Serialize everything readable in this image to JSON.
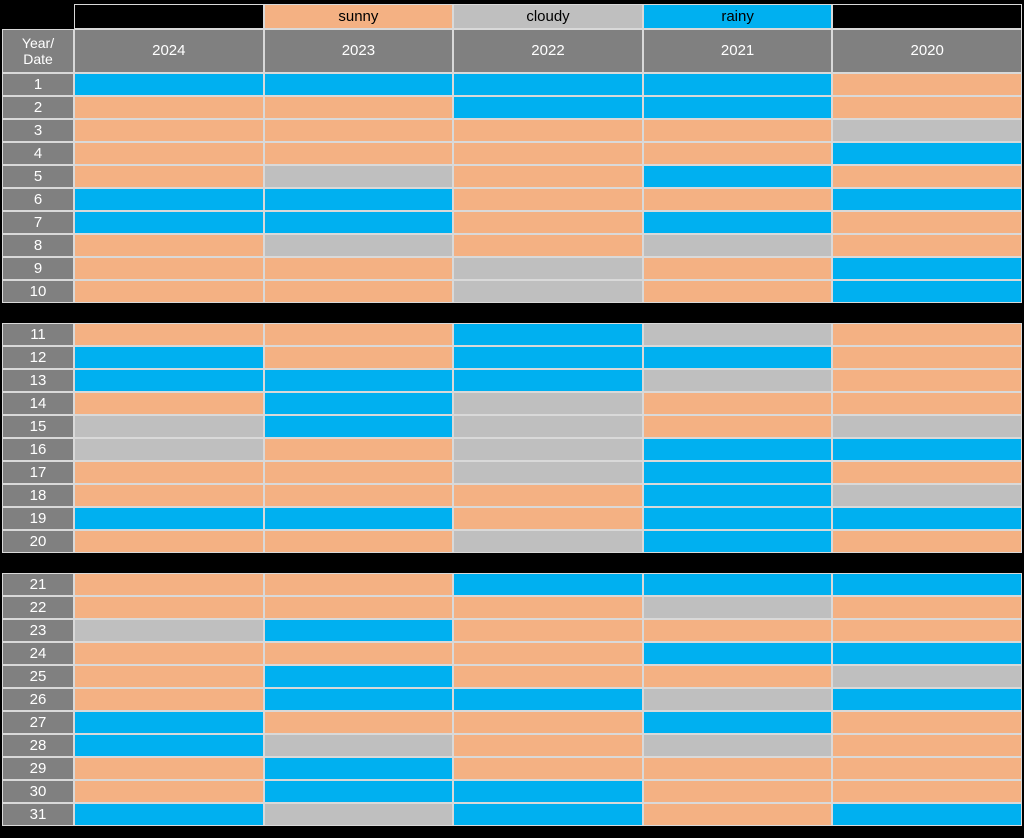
{
  "colors": {
    "sunny": "#F4B183",
    "cloudy": "#BFBFBF",
    "rainy": "#00B0F0",
    "empty": "#000000",
    "header_gray": "#808080",
    "border": "#D9D9D9",
    "background": "#000000",
    "header_text": "#FFFFFF",
    "legend_text": "#000000"
  },
  "legend": {
    "items": [
      {
        "label": "",
        "type": "empty"
      },
      {
        "label": "sunny",
        "type": "sunny"
      },
      {
        "label": "cloudy",
        "type": "cloudy"
      },
      {
        "label": "rainy",
        "type": "rainy"
      },
      {
        "label": "",
        "type": "empty"
      }
    ]
  },
  "header": {
    "corner_line1": "Year/",
    "corner_line2": "Date",
    "years": [
      "2024",
      "2023",
      "2022",
      "2021",
      "2020"
    ]
  },
  "chart_data": {
    "type": "heatmap",
    "title": "",
    "x_categories": [
      "2024",
      "2023",
      "2022",
      "2021",
      "2020"
    ],
    "y_categories": [
      1,
      2,
      3,
      4,
      5,
      6,
      7,
      8,
      9,
      10,
      11,
      12,
      13,
      14,
      15,
      16,
      17,
      18,
      19,
      20,
      21,
      22,
      23,
      24,
      25,
      26,
      27,
      28,
      29,
      30,
      31
    ],
    "legend_entries": [
      "sunny",
      "cloudy",
      "rainy"
    ],
    "row_label_header": "Year/Date",
    "row_groups": [
      [
        1,
        10
      ],
      [
        11,
        20
      ],
      [
        21,
        31
      ]
    ],
    "values": [
      [
        "rainy",
        "rainy",
        "rainy",
        "rainy",
        "sunny"
      ],
      [
        "sunny",
        "sunny",
        "rainy",
        "rainy",
        "sunny"
      ],
      [
        "sunny",
        "sunny",
        "sunny",
        "sunny",
        "cloudy"
      ],
      [
        "sunny",
        "sunny",
        "sunny",
        "sunny",
        "rainy"
      ],
      [
        "sunny",
        "cloudy",
        "sunny",
        "rainy",
        "sunny"
      ],
      [
        "rainy",
        "rainy",
        "sunny",
        "sunny",
        "rainy"
      ],
      [
        "rainy",
        "rainy",
        "sunny",
        "rainy",
        "sunny"
      ],
      [
        "sunny",
        "cloudy",
        "sunny",
        "cloudy",
        "sunny"
      ],
      [
        "sunny",
        "sunny",
        "cloudy",
        "sunny",
        "rainy"
      ],
      [
        "sunny",
        "sunny",
        "cloudy",
        "sunny",
        "rainy"
      ],
      [
        "sunny",
        "sunny",
        "rainy",
        "cloudy",
        "sunny"
      ],
      [
        "rainy",
        "sunny",
        "rainy",
        "rainy",
        "sunny"
      ],
      [
        "rainy",
        "rainy",
        "rainy",
        "cloudy",
        "sunny"
      ],
      [
        "sunny",
        "rainy",
        "cloudy",
        "sunny",
        "sunny"
      ],
      [
        "cloudy",
        "rainy",
        "cloudy",
        "sunny",
        "cloudy"
      ],
      [
        "cloudy",
        "sunny",
        "cloudy",
        "rainy",
        "rainy"
      ],
      [
        "sunny",
        "sunny",
        "cloudy",
        "rainy",
        "sunny"
      ],
      [
        "sunny",
        "sunny",
        "sunny",
        "rainy",
        "cloudy"
      ],
      [
        "rainy",
        "rainy",
        "sunny",
        "rainy",
        "rainy"
      ],
      [
        "sunny",
        "sunny",
        "cloudy",
        "rainy",
        "sunny"
      ],
      [
        "sunny",
        "sunny",
        "rainy",
        "rainy",
        "rainy"
      ],
      [
        "sunny",
        "sunny",
        "sunny",
        "cloudy",
        "sunny"
      ],
      [
        "cloudy",
        "rainy",
        "sunny",
        "sunny",
        "sunny"
      ],
      [
        "sunny",
        "sunny",
        "sunny",
        "rainy",
        "rainy"
      ],
      [
        "sunny",
        "rainy",
        "sunny",
        "sunny",
        "cloudy"
      ],
      [
        "sunny",
        "rainy",
        "rainy",
        "cloudy",
        "rainy"
      ],
      [
        "rainy",
        "sunny",
        "sunny",
        "rainy",
        "sunny"
      ],
      [
        "rainy",
        "cloudy",
        "sunny",
        "cloudy",
        "sunny"
      ],
      [
        "sunny",
        "rainy",
        "sunny",
        "sunny",
        "sunny"
      ],
      [
        "sunny",
        "rainy",
        "rainy",
        "sunny",
        "sunny"
      ],
      [
        "rainy",
        "cloudy",
        "rainy",
        "sunny",
        "rainy"
      ]
    ]
  }
}
